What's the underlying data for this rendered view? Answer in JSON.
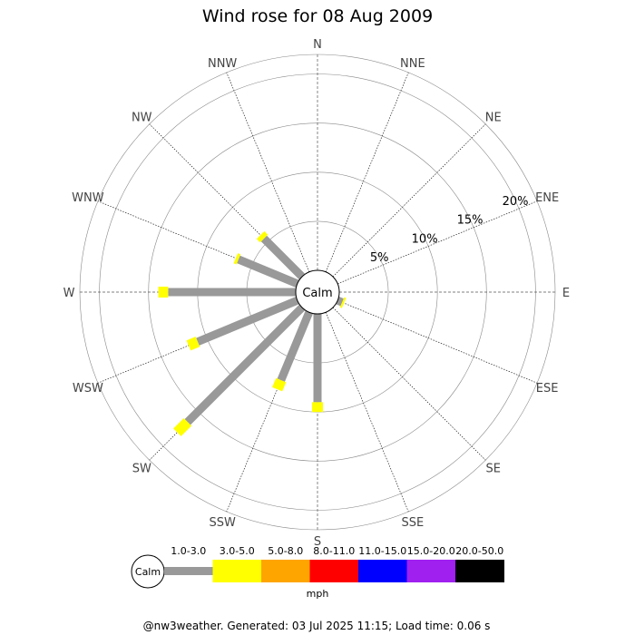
{
  "chart_data": {
    "type": "wind-rose",
    "title": "Wind rose for 08 Aug 2009",
    "calm_label": "Calm",
    "directions": [
      "N",
      "NNE",
      "NE",
      "ENE",
      "E",
      "ESE",
      "SE",
      "SSE",
      "S",
      "SSW",
      "SW",
      "WSW",
      "W",
      "WNW",
      "NW",
      "NNW"
    ],
    "radial_ticks": [
      5,
      10,
      15,
      20
    ],
    "radial_tick_labels": [
      "5%",
      "10%",
      "15%",
      "20%"
    ],
    "rmax": 22,
    "grid": true,
    "units": "mph",
    "speed_bins": [
      {
        "label": "1.0-3.0",
        "color": "#999999"
      },
      {
        "label": "3.0-5.0",
        "color": "#ffff00"
      },
      {
        "label": "5.0-8.0",
        "color": "#ffa500"
      },
      {
        "label": "8.0-11.0",
        "color": "#ff0000"
      },
      {
        "label": "11.0-15.0",
        "color": "#0000ff"
      },
      {
        "label": "15.0-20.0",
        "color": "#a020f0"
      },
      {
        "label": "20.0-50.0",
        "color": "#000000"
      }
    ],
    "series": [
      {
        "values": [
          0,
          0,
          0,
          0,
          0,
          0.5,
          0,
          0,
          9,
          7.5,
          16.5,
          11,
          13,
          6.5,
          5.5,
          0
        ]
      },
      {
        "values": [
          0,
          0,
          0,
          0,
          0,
          0.2,
          0,
          0,
          1,
          1,
          1.5,
          1,
          1,
          0.3,
          0.5,
          0
        ]
      }
    ]
  },
  "footer": "@nw3weather. Generated: 03 Jul 2025 11:15; Load time: 0.06 s"
}
